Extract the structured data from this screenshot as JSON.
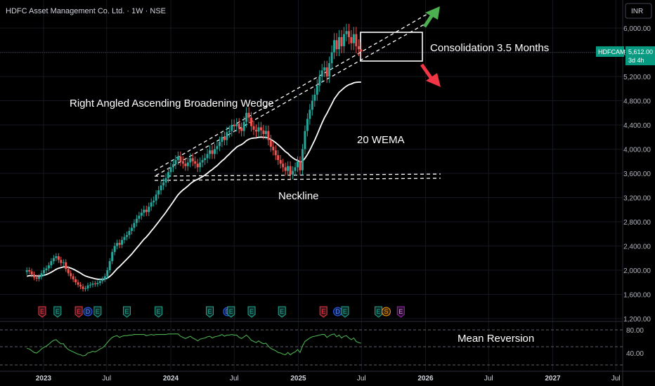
{
  "header": {
    "title": "HDFC Asset Management Co. Ltd. · 1W · NSE"
  },
  "currency_button": {
    "label": "INR"
  },
  "price_badge": {
    "ticker": "HDFCAMC",
    "price": "5,612.00",
    "countdown": "3d 4h"
  },
  "colors": {
    "up": "#26a69a",
    "down": "#ef5350",
    "wema": "#ffffff",
    "rsi": "#4caf50",
    "arrow_up": "#4caf50",
    "arrow_down": "#f23645",
    "badge": "#089981"
  },
  "chart_data": [
    {
      "type": "candlestick",
      "title": "",
      "yticks": [
        "6,000.00",
        "5,600.00",
        "5,200.00",
        "4,800.00",
        "4,400.00",
        "4,000.00",
        "3,600.00",
        "3,200.00",
        "2,800.00",
        "2,400.00",
        "2,000.00",
        "1,600.00",
        "1,200.00"
      ],
      "ylim": [
        1200,
        6000
      ],
      "x_start": "2022-11-14",
      "xticks": [
        {
          "label": "2023",
          "date": "2023-01-01",
          "bold": true
        },
        {
          "label": "Jul",
          "date": "2023-07-01",
          "bold": false
        },
        {
          "label": "2024",
          "date": "2024-01-01",
          "bold": true
        },
        {
          "label": "Jul",
          "date": "2024-07-01",
          "bold": false
        },
        {
          "label": "2025",
          "date": "2025-01-01",
          "bold": true
        },
        {
          "label": "Jul",
          "date": "2025-07-01",
          "bold": false
        },
        {
          "label": "2026",
          "date": "2026-01-01",
          "bold": true
        },
        {
          "label": "Jul",
          "date": "2026-07-01",
          "bold": false
        },
        {
          "label": "2027",
          "date": "2027-01-01",
          "bold": true
        },
        {
          "label": "Jul",
          "date": "2027-07-01",
          "bold": false
        }
      ],
      "close_series": [
        2000,
        1980,
        1930,
        1880,
        1860,
        1890,
        1950,
        2000,
        2030,
        2080,
        2150,
        2200,
        2230,
        2170,
        2120,
        2130,
        2020,
        1950,
        1900,
        1850,
        1800,
        1760,
        1730,
        1690,
        1700,
        1750,
        1760,
        1780,
        1770,
        1790,
        1820,
        1850,
        1900,
        2000,
        2150,
        2300,
        2400,
        2450,
        2420,
        2500,
        2550,
        2580,
        2650,
        2700,
        2780,
        2850,
        2900,
        2950,
        3000,
        2960,
        3050,
        3120,
        3150,
        3250,
        3320,
        3400,
        3450,
        3520,
        3620,
        3700,
        3750,
        3820,
        3880,
        3800,
        3760,
        3720,
        3780,
        3850,
        3800,
        3760,
        3700,
        3780,
        3820,
        3850,
        3920,
        3980,
        3920,
        4000,
        4050,
        4120,
        4200,
        4150,
        4280,
        4300,
        4400,
        4380,
        4420,
        4350,
        4300,
        4450,
        4600,
        4520,
        4380,
        4320,
        4290,
        4360,
        4310,
        4250,
        4300,
        4150,
        4040,
        3980,
        3900,
        3820,
        3760,
        3700,
        3640,
        3720,
        3580,
        3640,
        3700,
        3800,
        3650,
        4000,
        4300,
        4500,
        4650,
        4800,
        4900,
        5050,
        5200,
        5300,
        5350,
        5200,
        5420,
        5600,
        5800,
        5650,
        5850,
        5700,
        5900,
        5950,
        5850,
        5750,
        5900,
        5700,
        5650,
        5612
      ],
      "wema_series": [
        1900,
        1910,
        1912,
        1910,
        1906,
        1904,
        1908,
        1917,
        1929,
        1945,
        1966,
        1990,
        2015,
        2032,
        2043,
        2054,
        2054,
        2047,
        2035,
        2019,
        1998,
        1975,
        1952,
        1926,
        1905,
        1891,
        1879,
        1869,
        1859,
        1852,
        1849,
        1849,
        1854,
        1869,
        1897,
        1935,
        1979,
        2024,
        2060,
        2101,
        2143,
        2182,
        2225,
        2268,
        2315,
        2365,
        2413,
        2462,
        2510,
        2549,
        2597,
        2647,
        2695,
        2747,
        2798,
        2852,
        2904,
        2958,
        3016,
        3073,
        3130,
        3189,
        3246,
        3289,
        3326,
        3357,
        3390,
        3428,
        3459,
        3484,
        3500,
        3522,
        3546,
        3571,
        3601,
        3635,
        3663,
        3697,
        3729,
        3768,
        3806,
        3839,
        3881,
        3918,
        3961,
        3997,
        4034,
        4058,
        4075,
        4103,
        4139,
        4164,
        4177,
        4183,
        4186,
        4195,
        4199,
        4195,
        4195,
        4182,
        4161,
        4137,
        4107,
        4073,
        4037,
        3998,
        3958,
        3930,
        3889,
        3856,
        3829,
        3814,
        3785,
        3801,
        3848,
        3911,
        3983,
        4065,
        4148,
        4240,
        4336,
        4431,
        4520,
        4590,
        4668,
        4746,
        4828,
        4882,
        4939,
        4974,
        5011,
        5041,
        5064,
        5077,
        5096,
        5104,
        5107,
        5107
      ],
      "rsi_series": [
        48,
        47,
        44,
        41,
        40,
        43,
        47,
        50,
        52,
        55,
        59,
        62,
        63,
        59,
        56,
        56,
        50,
        46,
        44,
        42,
        40,
        38,
        37,
        35,
        36,
        40,
        41,
        43,
        42,
        44,
        47,
        49,
        53,
        58,
        63,
        67,
        69,
        70,
        67,
        69,
        70,
        70,
        71,
        71,
        72,
        72,
        72,
        72,
        72,
        70,
        71,
        72,
        71,
        72,
        72,
        72,
        72,
        72,
        73,
        73,
        73,
        73,
        73,
        69,
        67,
        65,
        67,
        69,
        66,
        64,
        61,
        64,
        65,
        66,
        68,
        69,
        66,
        68,
        69,
        70,
        72,
        69,
        71,
        71,
        72,
        71,
        71,
        67,
        65,
        68,
        71,
        67,
        62,
        60,
        58,
        61,
        58,
        56,
        57,
        52,
        48,
        46,
        44,
        41,
        40,
        38,
        37,
        41,
        37,
        40,
        42,
        46,
        41,
        52,
        60,
        63,
        66,
        68,
        69,
        70,
        71,
        72,
        72,
        67,
        70,
        72,
        73,
        68,
        71,
        66,
        69,
        70,
        66,
        63,
        66,
        60,
        58,
        57
      ],
      "rsi_yticks": [
        "80.00",
        "40.00"
      ],
      "events": [
        {
          "letter": "E",
          "date": "2022-12-28",
          "kind": "earnings-red"
        },
        {
          "letter": "E",
          "date": "2023-02-10",
          "kind": "earnings-green"
        },
        {
          "letter": "E",
          "date": "2023-04-12",
          "kind": "earnings-red"
        },
        {
          "letter": "D",
          "date": "2023-05-08",
          "kind": "dividend"
        },
        {
          "letter": "E",
          "date": "2023-06-05",
          "kind": "earnings-green"
        },
        {
          "letter": "E",
          "date": "2023-08-28",
          "kind": "earnings-green"
        },
        {
          "letter": "E",
          "date": "2023-11-27",
          "kind": "earnings-green"
        },
        {
          "letter": "E",
          "date": "2024-04-22",
          "kind": "earnings-green"
        },
        {
          "letter": "D",
          "date": "2024-06-12",
          "kind": "dividend"
        },
        {
          "letter": "E",
          "date": "2024-06-22",
          "kind": "earnings-green"
        },
        {
          "letter": "E",
          "date": "2024-08-20",
          "kind": "earnings-green"
        },
        {
          "letter": "E",
          "date": "2024-11-15",
          "kind": "earnings-green"
        },
        {
          "letter": "E",
          "date": "2025-03-14",
          "kind": "earnings-red"
        },
        {
          "letter": "D",
          "date": "2025-04-24",
          "kind": "dividend"
        },
        {
          "letter": "E",
          "date": "2025-05-15",
          "kind": "earnings-green"
        },
        {
          "letter": "E",
          "date": "2025-08-19",
          "kind": "earnings-green"
        },
        {
          "letter": "S",
          "date": "2025-09-10",
          "kind": "split"
        },
        {
          "letter": "E",
          "date": "2025-10-22",
          "kind": "earnings-purple"
        }
      ]
    }
  ],
  "annotations": {
    "wedge": "Right Angled Ascending Broadening Wedge",
    "neckline": "Neckline",
    "wema": "20 WEMA",
    "consolidation": "Consolidation 3.5 Months",
    "mean_reversion": "Mean Reversion"
  }
}
